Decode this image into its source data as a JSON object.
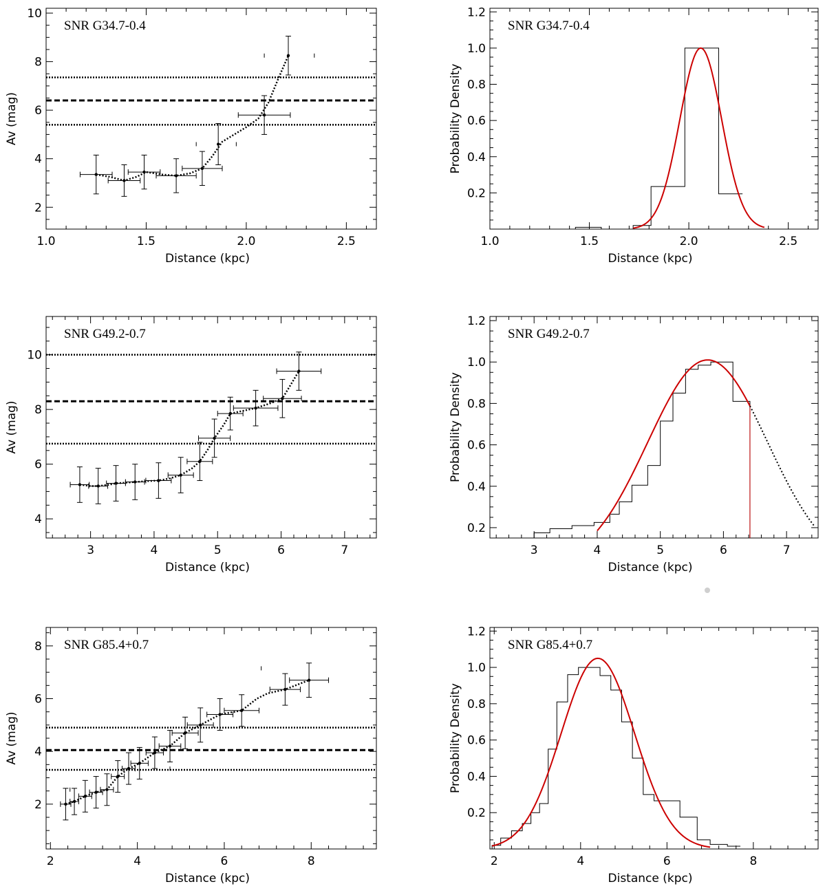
{
  "chart_data": [
    {
      "type": "scatter",
      "title": "SNR G34.7-0.4",
      "xlabel": "Distance (kpc)",
      "ylabel": "Av (mag)",
      "xlim": [
        1.0,
        2.65
      ],
      "ylim": [
        1.1,
        10.2
      ],
      "xticks": [
        1.0,
        1.5,
        2.0,
        2.5
      ],
      "xtick_labels": [
        "1.0",
        "1.5",
        "2.0",
        "2.5"
      ],
      "yticks": [
        2,
        4,
        6,
        8,
        10
      ],
      "ytick_labels": [
        "2",
        "4",
        "6",
        "8",
        "10"
      ],
      "points": [
        {
          "x": 1.25,
          "y": 3.35,
          "xerr": [
            0.08,
            0.08
          ],
          "yerr": 0.8
        },
        {
          "x": 1.39,
          "y": 3.1,
          "xerr": [
            0.08,
            0.08
          ],
          "yerr": 0.65
        },
        {
          "x": 1.49,
          "y": 3.45,
          "xerr": [
            0.08,
            0.08
          ],
          "yerr": 0.7
        },
        {
          "x": 1.65,
          "y": 3.3,
          "xerr": [
            0.1,
            0.1
          ],
          "yerr": 0.7
        },
        {
          "x": 1.78,
          "y": 3.6,
          "xerr": [
            0.1,
            0.1
          ],
          "yerr": 0.7
        },
        {
          "x": 1.86,
          "y": 4.6,
          "xerr": [
            0.0,
            0.0
          ],
          "yerr": 0.85
        },
        {
          "x": 2.09,
          "y": 5.8,
          "xerr": [
            0.13,
            0.13
          ],
          "yerr": 0.8
        },
        {
          "x": 2.21,
          "y": 8.25,
          "xerr": [
            0.0,
            0.0
          ],
          "yerr": 0.8
        }
      ],
      "curve": {
        "x": [
          1.25,
          1.32,
          1.39,
          1.45,
          1.5,
          1.58,
          1.65,
          1.72,
          1.78,
          1.83,
          1.88,
          1.94,
          2.0,
          2.06,
          2.11,
          2.16,
          2.21
        ],
        "y": [
          3.35,
          3.25,
          3.1,
          3.25,
          3.45,
          3.35,
          3.3,
          3.4,
          3.6,
          4.1,
          4.7,
          5.0,
          5.3,
          5.65,
          6.3,
          7.3,
          8.25
        ]
      },
      "marks": [
        {
          "x": 2.09,
          "y": 8.25
        },
        {
          "x": 2.34,
          "y": 8.25
        },
        {
          "x": 1.75,
          "y": 4.6
        },
        {
          "x": 1.95,
          "y": 4.6
        }
      ],
      "hlines": [
        {
          "y": 7.35,
          "style": "dotted"
        },
        {
          "y": 6.4,
          "style": "dashed"
        },
        {
          "y": 5.4,
          "style": "dotted"
        }
      ]
    },
    {
      "type": "area",
      "title": "SNR G34.7-0.4",
      "xlabel": "Distance (kpc)",
      "ylabel": "Probability Density",
      "xlim": [
        1.0,
        2.65
      ],
      "ylim": [
        0.0,
        1.22
      ],
      "xticks": [
        1.0,
        1.5,
        2.0,
        2.5
      ],
      "xtick_labels": [
        "1.0",
        "1.5",
        "2.0",
        "2.5"
      ],
      "yticks": [
        0.2,
        0.4,
        0.6,
        0.8,
        1.0,
        1.2
      ],
      "ytick_labels": [
        "0.2",
        "0.4",
        "0.6",
        "0.8",
        "1.0",
        "1.2"
      ],
      "histogram": {
        "edges": [
          1.43,
          1.56,
          1.72,
          1.81,
          1.98,
          2.15,
          2.27
        ],
        "values": [
          0.01,
          0.0,
          0.02,
          0.235,
          1.0,
          0.195
        ]
      },
      "fit": {
        "mean": 2.06,
        "sigma": 0.105,
        "peak": 1.0,
        "color": "#cc0000",
        "x_range": [
          1.72,
          2.38
        ]
      }
    },
    {
      "type": "scatter",
      "title": "SNR G49.2-0.7",
      "xlabel": "Distance (kpc)",
      "ylabel": "Av (mag)",
      "xlim": [
        2.3,
        7.5
      ],
      "ylim": [
        3.3,
        11.4
      ],
      "xticks": [
        3,
        4,
        5,
        6,
        7
      ],
      "xtick_labels": [
        "3",
        "4",
        "5",
        "6",
        "7"
      ],
      "yticks": [
        4,
        6,
        8,
        10
      ],
      "ytick_labels": [
        "4",
        "6",
        "8",
        "10"
      ],
      "points": [
        {
          "x": 2.83,
          "y": 5.25,
          "xerr": [
            0.15,
            0.15
          ],
          "yerr": 0.65
        },
        {
          "x": 3.12,
          "y": 5.2,
          "xerr": [
            0.15,
            0.15
          ],
          "yerr": 0.65
        },
        {
          "x": 3.4,
          "y": 5.3,
          "xerr": [
            0.15,
            0.15
          ],
          "yerr": 0.65
        },
        {
          "x": 3.7,
          "y": 5.35,
          "xerr": [
            0.15,
            0.15
          ],
          "yerr": 0.65
        },
        {
          "x": 4.07,
          "y": 5.4,
          "xerr": [
            0.2,
            0.2
          ],
          "yerr": 0.65
        },
        {
          "x": 4.42,
          "y": 5.6,
          "xerr": [
            0.2,
            0.2
          ],
          "yerr": 0.65
        },
        {
          "x": 4.72,
          "y": 6.1,
          "xerr": [
            0.2,
            0.2
          ],
          "yerr": 0.7
        },
        {
          "x": 4.95,
          "y": 6.95,
          "xerr": [
            0.25,
            0.25
          ],
          "yerr": 0.7
        },
        {
          "x": 5.2,
          "y": 7.85,
          "xerr": [
            0.2,
            0.2
          ],
          "yerr": 0.6
        },
        {
          "x": 5.6,
          "y": 8.05,
          "xerr": [
            0.35,
            0.35
          ],
          "yerr": 0.65
        },
        {
          "x": 6.02,
          "y": 8.4,
          "xerr": [
            0.3,
            0.3
          ],
          "yerr": 0.7
        },
        {
          "x": 6.28,
          "y": 9.4,
          "xerr": [
            0.35,
            0.35
          ],
          "yerr": 0.7
        }
      ],
      "curve": {
        "x": [
          2.83,
          3.0,
          3.12,
          3.3,
          3.4,
          3.6,
          3.7,
          3.9,
          4.07,
          4.25,
          4.42,
          4.6,
          4.72,
          4.85,
          4.95,
          5.1,
          5.2,
          5.4,
          5.6,
          5.8,
          6.02,
          6.15,
          6.28
        ],
        "y": [
          5.25,
          5.2,
          5.2,
          5.25,
          5.3,
          5.33,
          5.35,
          5.38,
          5.4,
          5.48,
          5.6,
          5.85,
          6.1,
          6.55,
          6.95,
          7.45,
          7.85,
          7.95,
          8.05,
          8.2,
          8.4,
          8.9,
          9.4
        ]
      },
      "marks": [],
      "hlines": [
        {
          "y": 10.0,
          "style": "dotted"
        },
        {
          "y": 8.3,
          "style": "dashed"
        },
        {
          "y": 6.75,
          "style": "dotted"
        }
      ]
    },
    {
      "type": "area",
      "title": "SNR G49.2-0.7",
      "xlabel": "Distance (kpc)",
      "ylabel": "Probability Density",
      "xlim": [
        2.3,
        7.5
      ],
      "ylim": [
        0.15,
        1.22
      ],
      "xticks": [
        3,
        4,
        5,
        6,
        7
      ],
      "xtick_labels": [
        "3",
        "4",
        "5",
        "6",
        "7"
      ],
      "yticks": [
        0.2,
        0.4,
        0.6,
        0.8,
        1.0,
        1.2
      ],
      "ytick_labels": [
        "0.2",
        "0.4",
        "0.6",
        "0.8",
        "1.0",
        "1.2"
      ],
      "histogram": {
        "edges": [
          3.0,
          3.25,
          3.6,
          3.95,
          4.2,
          4.35,
          4.55,
          4.8,
          5.0,
          5.2,
          5.4,
          5.6,
          5.8,
          6.15,
          6.42
        ],
        "values": [
          0.175,
          0.195,
          0.21,
          0.225,
          0.265,
          0.325,
          0.405,
          0.5,
          0.715,
          0.85,
          0.965,
          0.985,
          1.0,
          0.81
        ]
      },
      "fit": {
        "mean": 5.75,
        "sigma": 0.95,
        "peak": 1.01,
        "color": "#cc0000",
        "x_range": [
          4.0,
          6.42
        ],
        "extension_x_range": [
          6.42,
          7.45
        ]
      },
      "vline": {
        "x": 6.42,
        "color": "#cc0000"
      }
    },
    {
      "type": "scatter",
      "title": "SNR G85.4+0.7",
      "xlabel": "Distance (kpc)",
      "ylabel": "Av (mag)",
      "xlim": [
        1.9,
        9.5
      ],
      "ylim": [
        0.3,
        8.7
      ],
      "xticks": [
        2,
        4,
        6,
        8
      ],
      "xtick_labels": [
        "2",
        "4",
        "6",
        "8"
      ],
      "yticks": [
        2,
        4,
        6,
        8
      ],
      "ytick_labels": [
        "2",
        "4",
        "6",
        "8"
      ],
      "points": [
        {
          "x": 2.35,
          "y": 2.0,
          "xerr": [
            0.12,
            0.12
          ],
          "yerr": 0.6
        },
        {
          "x": 2.55,
          "y": 2.1,
          "xerr": [
            0.1,
            0.1
          ],
          "yerr": 0.5
        },
        {
          "x": 2.8,
          "y": 2.3,
          "xerr": [
            0.15,
            0.15
          ],
          "yerr": 0.6
        },
        {
          "x": 3.05,
          "y": 2.45,
          "xerr": [
            0.15,
            0.15
          ],
          "yerr": 0.6
        },
        {
          "x": 3.3,
          "y": 2.55,
          "xerr": [
            0.15,
            0.15
          ],
          "yerr": 0.6
        },
        {
          "x": 3.55,
          "y": 3.05,
          "xerr": [
            0.15,
            0.15
          ],
          "yerr": 0.6
        },
        {
          "x": 3.8,
          "y": 3.35,
          "xerr": [
            0.15,
            0.15
          ],
          "yerr": 0.6
        },
        {
          "x": 4.05,
          "y": 3.55,
          "xerr": [
            0.2,
            0.2
          ],
          "yerr": 0.6
        },
        {
          "x": 4.4,
          "y": 3.95,
          "xerr": [
            0.2,
            0.2
          ],
          "yerr": 0.6
        },
        {
          "x": 4.75,
          "y": 4.2,
          "xerr": [
            0.25,
            0.25
          ],
          "yerr": 0.6
        },
        {
          "x": 5.1,
          "y": 4.7,
          "xerr": [
            0.3,
            0.3
          ],
          "yerr": 0.6
        },
        {
          "x": 5.45,
          "y": 5.0,
          "xerr": [
            0.3,
            0.3
          ],
          "yerr": 0.65
        },
        {
          "x": 5.9,
          "y": 5.4,
          "xerr": [
            0.3,
            0.3
          ],
          "yerr": 0.6
        },
        {
          "x": 6.4,
          "y": 5.55,
          "xerr": [
            0.4,
            0.4
          ],
          "yerr": 0.6
        },
        {
          "x": 7.4,
          "y": 6.35,
          "xerr": [
            0.35,
            0.35
          ],
          "yerr": 0.6
        },
        {
          "x": 7.95,
          "y": 6.7,
          "xerr": [
            0.45,
            0.45
          ],
          "yerr": 0.65
        }
      ],
      "curve": {
        "x": [
          2.35,
          2.55,
          2.8,
          3.05,
          3.3,
          3.55,
          3.8,
          4.05,
          4.4,
          4.75,
          5.1,
          5.45,
          5.9,
          6.4,
          6.75,
          7.0,
          7.4,
          7.95
        ],
        "y": [
          2.0,
          2.1,
          2.3,
          2.45,
          2.55,
          3.05,
          3.35,
          3.55,
          3.95,
          4.2,
          4.7,
          5.0,
          5.4,
          5.55,
          6.0,
          6.2,
          6.35,
          6.7
        ]
      },
      "marks": [
        {
          "x": 2.45,
          "y": 2.55
        },
        {
          "x": 4.75,
          "y": 3.35
        },
        {
          "x": 6.85,
          "y": 7.15
        }
      ],
      "hlines": [
        {
          "y": 4.9,
          "style": "dotted"
        },
        {
          "y": 4.05,
          "style": "dashed"
        },
        {
          "y": 3.3,
          "style": "dotted"
        }
      ]
    },
    {
      "type": "area",
      "title": "SNR G85.4+0.7",
      "xlabel": "Distance (kpc)",
      "ylabel": "Probability Density",
      "xlim": [
        1.9,
        9.5
      ],
      "ylim": [
        0.0,
        1.22
      ],
      "xticks": [
        2,
        4,
        6,
        8
      ],
      "xtick_labels": [
        "2",
        "4",
        "6",
        "8"
      ],
      "yticks": [
        0.2,
        0.4,
        0.6,
        0.8,
        1.0,
        1.2
      ],
      "ytick_labels": [
        "0.2",
        "0.4",
        "0.6",
        "0.8",
        "1.0",
        "1.2"
      ],
      "histogram": {
        "edges": [
          1.95,
          2.15,
          2.4,
          2.65,
          2.85,
          3.05,
          3.25,
          3.45,
          3.7,
          3.95,
          4.2,
          4.45,
          4.7,
          4.95,
          5.2,
          5.45,
          5.7,
          6.0,
          6.3,
          6.7,
          7.0,
          7.4,
          7.7
        ],
        "values": [
          0.02,
          0.06,
          0.1,
          0.14,
          0.2,
          0.25,
          0.55,
          0.81,
          0.96,
          1.0,
          1.0,
          0.955,
          0.875,
          0.7,
          0.5,
          0.3,
          0.265,
          0.265,
          0.175,
          0.05,
          0.025,
          0.015
        ]
      },
      "fit": {
        "mean": 4.4,
        "sigma": 0.85,
        "peak": 1.05,
        "color": "#cc0000",
        "x_range": [
          1.95,
          7.0
        ]
      }
    }
  ]
}
